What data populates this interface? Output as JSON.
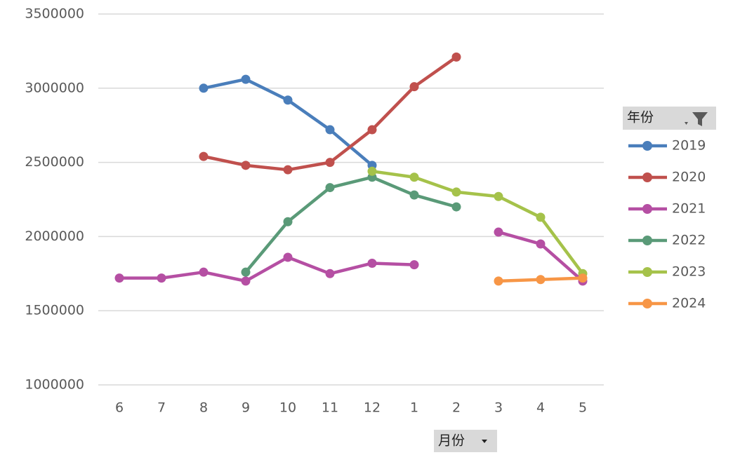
{
  "chart_data": {
    "type": "line",
    "categories": [
      "6",
      "7",
      "8",
      "9",
      "10",
      "11",
      "12",
      "1",
      "2",
      "3",
      "4",
      "5"
    ],
    "series": [
      {
        "name": "2019",
        "color": "#4a7ebb",
        "values": [
          null,
          null,
          3000000,
          3060000,
          2920000,
          2720000,
          2480000,
          null,
          null,
          null,
          null,
          null
        ]
      },
      {
        "name": "2020",
        "color": "#c0504d",
        "values": [
          null,
          null,
          2540000,
          2480000,
          2450000,
          2500000,
          2720000,
          3010000,
          3210000,
          null,
          null,
          null
        ]
      },
      {
        "name": "2021",
        "color": "#b54fa3",
        "values": [
          1720000,
          1720000,
          1760000,
          1700000,
          1860000,
          1750000,
          1820000,
          1810000,
          null,
          2030000,
          1950000,
          1700000
        ]
      },
      {
        "name": "2022",
        "color": "#5a9a78",
        "values": [
          null,
          null,
          null,
          1760000,
          2100000,
          2330000,
          2400000,
          2280000,
          2200000,
          null,
          null,
          null
        ]
      },
      {
        "name": "2023",
        "color": "#a5c24a",
        "values": [
          null,
          null,
          null,
          null,
          null,
          null,
          2440000,
          2400000,
          2300000,
          2270000,
          2130000,
          1750000
        ]
      },
      {
        "name": "2024",
        "color": "#f79646",
        "values": [
          null,
          null,
          null,
          null,
          null,
          null,
          null,
          null,
          null,
          1700000,
          1710000,
          1720000
        ]
      }
    ],
    "ylim": [
      1000000,
      3500000
    ],
    "yticks": [
      1000000,
      1500000,
      2000000,
      2500000,
      3000000,
      3500000
    ],
    "grid": true,
    "legend": "right",
    "legend_title": "年份",
    "x_field": "月份"
  }
}
